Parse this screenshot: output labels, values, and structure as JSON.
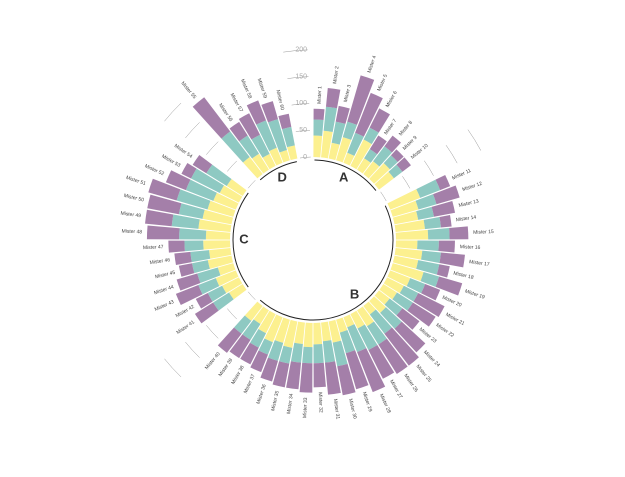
{
  "chart_data": {
    "type": "circular-stacked-bar",
    "colors": [
      "#fcf08f",
      "#8ec9c2",
      "#a47fa9"
    ],
    "ylim": [
      0,
      250
    ],
    "yticks": [
      0,
      50,
      100,
      150,
      200
    ],
    "groups": [
      {
        "name": "A",
        "categories": [
          "Mister 1",
          "Mister 2",
          "Mister 3",
          "Mister 4",
          "Mister 5",
          "Mister 6",
          "Mister 7",
          "Mister 8",
          "Mister 9",
          "Mister 10"
        ],
        "values": [
          [
            40,
            30,
            20
          ],
          [
            50,
            45,
            35
          ],
          [
            30,
            40,
            30
          ],
          [
            45,
            30,
            90
          ],
          [
            20,
            40,
            80
          ],
          [
            55,
            25,
            40
          ],
          [
            25,
            20,
            30
          ],
          [
            30,
            35,
            25
          ],
          [
            40,
            20,
            15
          ],
          [
            35,
            20,
            20
          ]
        ]
      },
      {
        "name": "B",
        "categories": [
          "Mister 11",
          "Mister 12",
          "Mister 13",
          "Mister 14",
          "Mister 15",
          "Mister 16",
          "Mister 17",
          "Mister 18",
          "Mister 19",
          "Mister 20",
          "Mister 21",
          "Mister 22",
          "Mister 23",
          "Mister 24",
          "Mister 25",
          "Mister 26",
          "Mister 27",
          "Mister 28",
          "Mister 29",
          "Mister 30",
          "Mister 31",
          "Mister 32",
          "Mister 33",
          "Mister 34",
          "Mister 35",
          "Mister 36",
          "Mister 37",
          "Mister 38",
          "Mister 39",
          "Mister 40"
        ],
        "values": [
          [
            60,
            40,
            20
          ],
          [
            50,
            35,
            45
          ],
          [
            45,
            30,
            40
          ],
          [
            55,
            30,
            20
          ],
          [
            60,
            40,
            35
          ],
          [
            40,
            40,
            30
          ],
          [
            50,
            35,
            45
          ],
          [
            45,
            40,
            20
          ],
          [
            60,
            30,
            45
          ],
          [
            40,
            30,
            30
          ],
          [
            35,
            30,
            55
          ],
          [
            30,
            35,
            50
          ],
          [
            25,
            30,
            40
          ],
          [
            30,
            40,
            60
          ],
          [
            20,
            45,
            75
          ],
          [
            35,
            40,
            65
          ],
          [
            30,
            45,
            60
          ],
          [
            20,
            50,
            80
          ],
          [
            25,
            40,
            70
          ],
          [
            40,
            45,
            55
          ],
          [
            35,
            40,
            60
          ],
          [
            40,
            35,
            45
          ],
          [
            45,
            30,
            55
          ],
          [
            40,
            35,
            50
          ],
          [
            50,
            30,
            45
          ],
          [
            45,
            35,
            40
          ],
          [
            50,
            25,
            35
          ],
          [
            40,
            30,
            35
          ],
          [
            30,
            35,
            40
          ],
          [
            35,
            30,
            45
          ]
        ]
      },
      {
        "name": "C",
        "categories": [
          "Mister 41",
          "Mister 42",
          "Mister 43",
          "Mister 44",
          "Mister 45",
          "Mister 46",
          "Mister 47",
          "Mister 48",
          "Mister 49",
          "Mister 50",
          "Mister 51",
          "Mister 52",
          "Mister 53",
          "Mister 54"
        ],
        "values": [
          [
            30,
            35,
            40
          ],
          [
            35,
            30,
            25
          ],
          [
            40,
            35,
            45
          ],
          [
            30,
            40,
            40
          ],
          [
            45,
            30,
            25
          ],
          [
            40,
            35,
            30
          ],
          [
            50,
            35,
            30
          ],
          [
            45,
            50,
            60
          ],
          [
            60,
            50,
            50
          ],
          [
            55,
            45,
            60
          ],
          [
            50,
            60,
            55
          ],
          [
            45,
            55,
            40
          ],
          [
            40,
            60,
            20
          ],
          [
            35,
            45,
            30
          ]
        ]
      },
      {
        "name": "D",
        "categories": [
          "Mister 55",
          "Mister 56",
          "Mister 57",
          "Mister 58",
          "Mister 59",
          "Mister 60"
        ],
        "values": [
          [
            40,
            60,
            80
          ],
          [
            35,
            40,
            30
          ],
          [
            25,
            40,
            45
          ],
          [
            30,
            55,
            40
          ],
          [
            20,
            60,
            35
          ],
          [
            25,
            35,
            25
          ]
        ]
      }
    ]
  }
}
